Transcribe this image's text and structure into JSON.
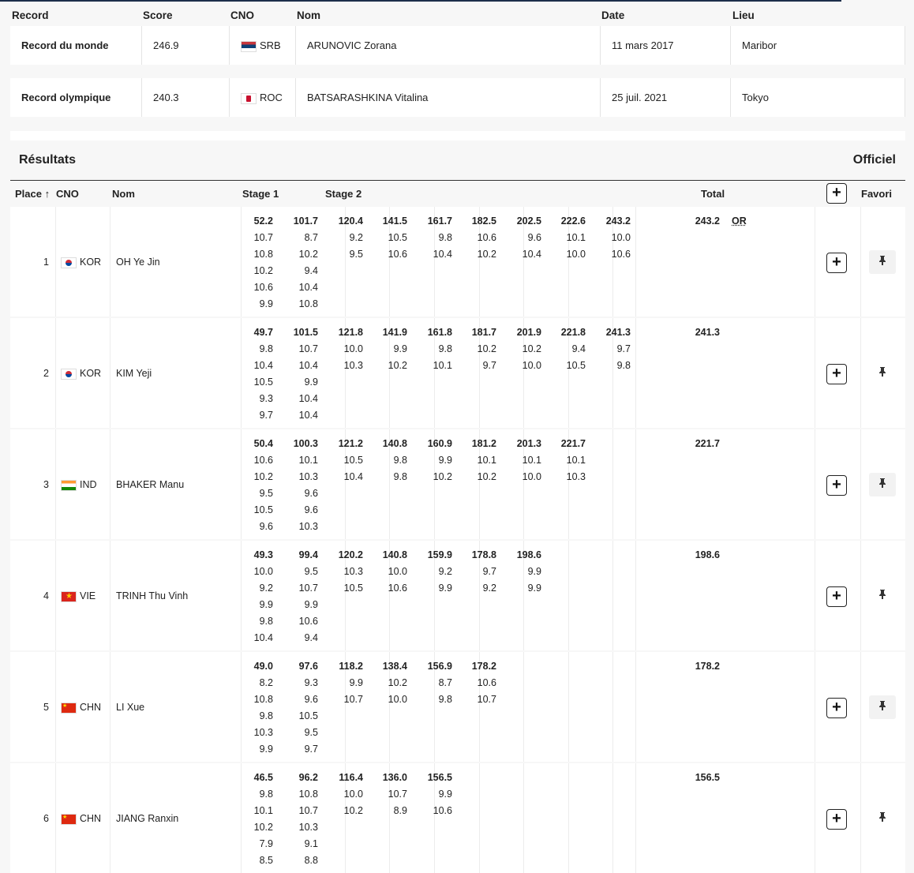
{
  "records": {
    "headers": {
      "record": "Record",
      "score": "Score",
      "cno": "CNO",
      "nom": "Nom",
      "date": "Date",
      "lieu": "Lieu"
    },
    "rows": [
      {
        "record": "Record du monde",
        "score": "246.9",
        "cno": "SRB",
        "nom": "ARUNOVIC Zorana",
        "date": "11 mars 2017",
        "lieu": "Maribor"
      },
      {
        "record": "Record olympique",
        "score": "240.3",
        "cno": "ROC",
        "nom": "BATSARASHKINA Vitalina",
        "date": "25 juil. 2021",
        "lieu": "Tokyo"
      }
    ]
  },
  "results": {
    "title": "Résultats",
    "status": "Officiel",
    "headers": {
      "place": "Place",
      "sort_icon": "↑",
      "cno": "CNO",
      "nom": "Nom",
      "stage1": "Stage 1",
      "stage2": "Stage 2",
      "total": "Total",
      "favori": "Favori",
      "expand": "+"
    },
    "rows": [
      {
        "place": "1",
        "cno": "KOR",
        "nom": "OH Ye Jin",
        "total": "243.2",
        "medal": "OR",
        "cum": [
          "52.2",
          "101.7",
          "120.4",
          "141.5",
          "161.7",
          "182.5",
          "202.5",
          "222.6",
          "243.2"
        ],
        "s1a": [
          "10.7",
          "10.8",
          "10.2",
          "10.6",
          "9.9"
        ],
        "s1b": [
          "8.7",
          "10.2",
          "9.4",
          "10.4",
          "10.8"
        ],
        "s2": [
          [
            "9.2",
            "9.5"
          ],
          [
            "10.5",
            "10.6"
          ],
          [
            "9.8",
            "10.4"
          ],
          [
            "10.6",
            "10.2"
          ],
          [
            "9.6",
            "10.4"
          ],
          [
            "10.1",
            "10.0"
          ],
          [
            "10.0",
            "10.6"
          ]
        ]
      },
      {
        "place": "2",
        "cno": "KOR",
        "nom": "KIM Yeji",
        "total": "241.3",
        "medal": "",
        "cum": [
          "49.7",
          "101.5",
          "121.8",
          "141.9",
          "161.8",
          "181.7",
          "201.9",
          "221.8",
          "241.3"
        ],
        "s1a": [
          "9.8",
          "10.4",
          "10.5",
          "9.3",
          "9.7"
        ],
        "s1b": [
          "10.7",
          "10.4",
          "9.9",
          "10.4",
          "10.4"
        ],
        "s2": [
          [
            "10.0",
            "10.3"
          ],
          [
            "9.9",
            "10.2"
          ],
          [
            "9.8",
            "10.1"
          ],
          [
            "10.2",
            "9.7"
          ],
          [
            "10.2",
            "10.0"
          ],
          [
            "9.4",
            "10.5"
          ],
          [
            "9.7",
            "9.8"
          ]
        ]
      },
      {
        "place": "3",
        "cno": "IND",
        "nom": "BHAKER Manu",
        "total": "221.7",
        "medal": "",
        "cum": [
          "50.4",
          "100.3",
          "121.2",
          "140.8",
          "160.9",
          "181.2",
          "201.3",
          "221.7"
        ],
        "s1a": [
          "10.6",
          "10.2",
          "9.5",
          "10.5",
          "9.6"
        ],
        "s1b": [
          "10.1",
          "10.3",
          "9.6",
          "9.6",
          "10.3"
        ],
        "s2": [
          [
            "10.5",
            "10.4"
          ],
          [
            "9.8",
            "9.8"
          ],
          [
            "9.9",
            "10.2"
          ],
          [
            "10.1",
            "10.2"
          ],
          [
            "10.1",
            "10.0"
          ],
          [
            "10.1",
            "10.3"
          ]
        ]
      },
      {
        "place": "4",
        "cno": "VIE",
        "nom": "TRINH Thu Vinh",
        "total": "198.6",
        "medal": "",
        "cum": [
          "49.3",
          "99.4",
          "120.2",
          "140.8",
          "159.9",
          "178.8",
          "198.6"
        ],
        "s1a": [
          "10.0",
          "9.2",
          "9.9",
          "9.8",
          "10.4"
        ],
        "s1b": [
          "9.5",
          "10.7",
          "9.9",
          "10.6",
          "9.4"
        ],
        "s2": [
          [
            "10.3",
            "10.5"
          ],
          [
            "10.0",
            "10.6"
          ],
          [
            "9.2",
            "9.9"
          ],
          [
            "9.7",
            "9.2"
          ],
          [
            "9.9",
            "9.9"
          ]
        ]
      },
      {
        "place": "5",
        "cno": "CHN",
        "nom": "LI Xue",
        "total": "178.2",
        "medal": "",
        "cum": [
          "49.0",
          "97.6",
          "118.2",
          "138.4",
          "156.9",
          "178.2"
        ],
        "s1a": [
          "8.2",
          "10.8",
          "9.8",
          "10.3",
          "9.9"
        ],
        "s1b": [
          "9.3",
          "9.6",
          "10.5",
          "9.5",
          "9.7"
        ],
        "s2": [
          [
            "9.9",
            "10.7"
          ],
          [
            "10.2",
            "10.0"
          ],
          [
            "8.7",
            "9.8"
          ],
          [
            "10.6",
            "10.7"
          ]
        ]
      },
      {
        "place": "6",
        "cno": "CHN",
        "nom": "JIANG Ranxin",
        "total": "156.5",
        "medal": "",
        "cum": [
          "46.5",
          "96.2",
          "116.4",
          "136.0",
          "156.5"
        ],
        "s1a": [
          "9.8",
          "10.1",
          "10.2",
          "7.9",
          "8.5"
        ],
        "s1b": [
          "10.8",
          "10.7",
          "10.3",
          "9.1",
          "8.8"
        ],
        "s2": [
          [
            "10.0",
            "10.2"
          ],
          [
            "10.7",
            "8.9"
          ],
          [
            "9.9",
            "10.6"
          ]
        ]
      }
    ]
  },
  "colors": {
    "header_line": "#1d2e4a",
    "row_bg": "#ffffff",
    "page_bg": "#f7f7f7"
  }
}
